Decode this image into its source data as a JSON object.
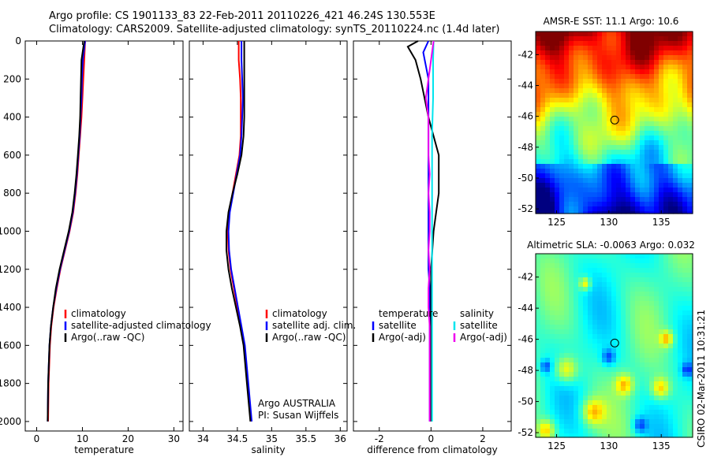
{
  "title": {
    "line1": "Argo profile: CS 1901133_83 22-Feb-2011 20110226_421 46.24S 130.553E",
    "line2": "Climatology: CARS2009. Satellite-adjusted climatology: synTS_20110224.nc (1.4d later)"
  },
  "side_stamp": "CSIRO 02-Mar-2011 10:31:21",
  "colors": {
    "climatology": "#ff0000",
    "satellite": "#0000ff",
    "argo": "#000000",
    "sat_salinity": "#00e5ee",
    "argo_salinity": "#ee00ee"
  },
  "chart_data": [
    {
      "type": "line",
      "name": "temperature-panel",
      "xlabel": "temperature",
      "xticks": [
        "0",
        "10",
        "20",
        "30"
      ],
      "xlim": [
        -2.5,
        32
      ],
      "yticks": [
        "0",
        "200",
        "400",
        "600",
        "800",
        "1000",
        "1200",
        "1400",
        "1600",
        "1800",
        "2000"
      ],
      "ylim": [
        2050,
        0
      ],
      "legend": [
        "climatology",
        "satellite-adjusted climatology",
        "Argo(..raw -QC)"
      ],
      "series": [
        {
          "name": "climatology",
          "color": "#ff0000",
          "x": [
            10.6,
            10.4,
            10.2,
            10.0,
            9.8,
            9.5,
            9.2,
            8.9,
            8.5,
            8.0,
            7.2,
            6.2,
            5.2,
            4.4,
            3.7,
            3.2,
            2.9,
            2.6,
            2.5
          ],
          "y": [
            0,
            100,
            200,
            300,
            400,
            500,
            600,
            700,
            800,
            900,
            1000,
            1100,
            1200,
            1300,
            1400,
            1500,
            1600,
            1800,
            2000
          ]
        },
        {
          "name": "satellite-adjusted climatology",
          "color": "#0000ff",
          "x": [
            10.6,
            10.1,
            9.9,
            9.8,
            9.6,
            9.4,
            9.1,
            8.8,
            8.4,
            7.9,
            7.1,
            6.1,
            5.1,
            4.3,
            3.6,
            3.1,
            2.8,
            2.5,
            2.4
          ],
          "y": [
            0,
            100,
            200,
            300,
            400,
            500,
            600,
            700,
            800,
            900,
            1000,
            1100,
            1200,
            1300,
            1400,
            1500,
            1600,
            1800,
            2000
          ]
        },
        {
          "name": "Argo(..raw -QC)",
          "color": "#000000",
          "x": [
            10.4,
            9.8,
            9.7,
            9.6,
            9.5,
            9.3,
            9.0,
            8.7,
            8.3,
            7.8,
            7.0,
            6.0,
            5.0,
            4.2,
            3.6,
            3.1,
            2.8,
            2.5,
            2.4
          ],
          "y": [
            0,
            100,
            200,
            300,
            400,
            500,
            600,
            700,
            800,
            900,
            1000,
            1100,
            1200,
            1300,
            1400,
            1500,
            1600,
            1800,
            2000
          ]
        }
      ]
    },
    {
      "type": "line",
      "name": "salinity-panel",
      "xlabel": "salinity",
      "xticks": [
        "34",
        "34.5",
        "35",
        "35.5",
        "36"
      ],
      "xlim": [
        33.8,
        36.1
      ],
      "legend": [
        "climatology",
        "satellite adj. clim.",
        "Argo(..raw -QC)"
      ],
      "credit": [
        "Argo AUSTRALIA",
        "PI: Susan Wijffels"
      ],
      "series": [
        {
          "name": "climatology",
          "color": "#ff0000",
          "x": [
            34.52,
            34.52,
            34.54,
            34.55,
            34.55,
            34.55,
            34.53,
            34.48,
            34.43,
            34.38,
            34.36,
            34.37,
            34.4,
            34.45,
            34.5,
            34.55,
            34.6,
            34.65,
            34.7
          ],
          "y": [
            0,
            100,
            200,
            300,
            400,
            500,
            600,
            700,
            800,
            900,
            1000,
            1100,
            1200,
            1300,
            1400,
            1500,
            1600,
            1800,
            2000
          ]
        },
        {
          "name": "satellite adj. clim.",
          "color": "#0000ff",
          "x": [
            34.56,
            34.56,
            34.57,
            34.58,
            34.57,
            34.56,
            34.54,
            34.49,
            34.44,
            34.39,
            34.37,
            34.38,
            34.41,
            34.46,
            34.51,
            34.56,
            34.61,
            34.66,
            34.71
          ],
          "y": [
            0,
            100,
            200,
            300,
            400,
            500,
            600,
            700,
            800,
            900,
            1000,
            1100,
            1200,
            1300,
            1400,
            1500,
            1600,
            1800,
            2000
          ]
        },
        {
          "name": "Argo(..raw -QC)",
          "color": "#000000",
          "x": [
            34.6,
            34.6,
            34.6,
            34.6,
            34.6,
            34.59,
            34.56,
            34.5,
            34.43,
            34.37,
            34.34,
            34.34,
            34.37,
            34.42,
            34.48,
            34.54,
            34.59,
            34.64,
            34.69
          ],
          "y": [
            0,
            100,
            200,
            300,
            400,
            500,
            600,
            700,
            800,
            900,
            1000,
            1100,
            1200,
            1300,
            1400,
            1500,
            1600,
            1800,
            2000
          ]
        }
      ]
    },
    {
      "type": "line",
      "name": "difference-panel",
      "xlabel": "difference from climatology",
      "xticks": [
        "-2",
        "0",
        "2"
      ],
      "xlim": [
        -3,
        3.1
      ],
      "legend_left": [
        "temperature",
        "satellite",
        "Argo(-adj)"
      ],
      "legend_right": [
        "salinity",
        "satellite",
        "Argo(-adj)"
      ],
      "series": [
        {
          "name": "temperature satellite",
          "color": "#0000ff",
          "x": [
            -0.1,
            -0.3,
            -0.1,
            -0.1,
            -0.1,
            -0.1,
            -0.1,
            -0.1,
            -0.1,
            -0.1,
            -0.1,
            -0.1,
            -0.1,
            -0.05,
            -0.05,
            -0.05,
            -0.05,
            -0.05,
            -0.05
          ],
          "y": [
            0,
            60,
            200,
            300,
            400,
            500,
            600,
            700,
            800,
            900,
            1000,
            1100,
            1200,
            1300,
            1400,
            1500,
            1600,
            1800,
            2000
          ]
        },
        {
          "name": "temperature Argo(-adj)",
          "color": "#000000",
          "x": [
            -0.5,
            -0.9,
            -0.6,
            -0.4,
            -0.1,
            0.1,
            0.3,
            0.3,
            0.3,
            0.2,
            0.1,
            0.05,
            0.0,
            0.0,
            0.0,
            0.0,
            0.0,
            0.0,
            0.0
          ],
          "y": [
            0,
            30,
            100,
            200,
            400,
            500,
            600,
            700,
            800,
            900,
            1000,
            1100,
            1200,
            1300,
            1400,
            1500,
            1600,
            1800,
            2000
          ]
        },
        {
          "name": "salinity satellite",
          "color": "#00e5ee",
          "x": [
            0.1,
            0.08,
            0.08,
            0.08,
            0.06,
            0.04,
            0.04,
            0.04,
            0.04,
            0.04,
            0.04,
            0.04,
            0.04,
            0.04,
            0.04,
            0.04,
            0.04,
            0.04,
            0.04
          ],
          "y": [
            0,
            100,
            200,
            300,
            400,
            500,
            600,
            700,
            800,
            900,
            1000,
            1100,
            1200,
            1300,
            1400,
            1500,
            1600,
            1800,
            2000
          ]
        },
        {
          "name": "salinity Argo(-adj)",
          "color": "#ee00ee",
          "x": [
            0.1,
            0.0,
            -0.1,
            -0.2,
            -0.1,
            -0.1,
            -0.1,
            -0.05,
            -0.1,
            -0.05,
            -0.05,
            -0.1,
            -0.05,
            -0.1,
            -0.1,
            -0.05,
            -0.05,
            -0.05,
            -0.05
          ],
          "y": [
            0,
            100,
            200,
            300,
            400,
            500,
            600,
            700,
            800,
            900,
            1000,
            1100,
            1200,
            1300,
            1400,
            1500,
            1600,
            1800,
            2000
          ]
        }
      ]
    },
    {
      "type": "heatmap",
      "name": "sst-map",
      "title": "AMSR-E SST: 11.1  Argo: 10.6",
      "xticks": [
        "125",
        "130",
        "135"
      ],
      "yticks": [
        "-42",
        "-44",
        "-46",
        "-48",
        "-50",
        "-52"
      ],
      "xlim": [
        123,
        138
      ],
      "ylim": [
        -52.3,
        -40.5
      ],
      "marker": {
        "lon": 130.553,
        "lat": -46.24
      }
    },
    {
      "type": "heatmap",
      "name": "sla-map",
      "title": "Altimetric SLA: -0.0063  Argo: 0.032",
      "xticks": [
        "125",
        "130",
        "135"
      ],
      "yticks": [
        "-42",
        "-44",
        "-46",
        "-48",
        "-50",
        "-52"
      ],
      "xlim": [
        123,
        138
      ],
      "ylim": [
        -52.3,
        -40.5
      ],
      "marker": {
        "lon": 130.553,
        "lat": -46.24
      }
    }
  ]
}
